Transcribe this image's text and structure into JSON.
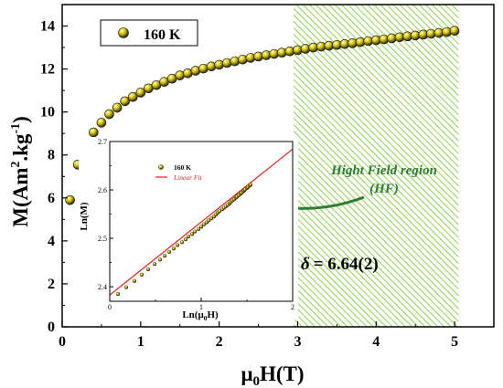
{
  "chart_data": [
    {
      "type": "scatter",
      "role": "main",
      "xlabel": "μ0H(T)",
      "xlabel_main": "μ",
      "xlabel_sub": "0",
      "xlabel_rest": "H(T)",
      "ylabel": "M(Am².kg⁻¹)",
      "ylabel_pre": "M(Am",
      "ylabel_sup1": "2",
      "ylabel_mid": ".kg",
      "ylabel_sup2": "-1",
      "ylabel_post": ")",
      "xlim": [
        0,
        5.5
      ],
      "ylim": [
        0,
        15
      ],
      "xticks": [
        "0",
        "1",
        "2",
        "3",
        "4",
        "5"
      ],
      "yticks": [
        "0",
        "2",
        "4",
        "6",
        "8",
        "10",
        "12",
        "14"
      ],
      "legend": {
        "placement": "top-left",
        "entries": [
          "160 K"
        ]
      },
      "grid": false,
      "marker_color": "#d4c400",
      "shaded_region": {
        "x_range": [
          2.95,
          5.05
        ],
        "color": "#8fd14f",
        "pattern": "diagonal-hatch"
      },
      "annotations": {
        "region_line1": "Hight Field region",
        "region_line2": "(HF)",
        "delta_symbol": "δ",
        "delta_value": "= 6.64(2)",
        "annotation_color": "#2e7d32"
      },
      "series": [
        {
          "name": "160 K",
          "x": [
            0.1,
            0.2,
            0.3,
            0.4,
            0.5,
            0.6,
            0.7,
            0.8,
            0.9,
            1.0,
            1.1,
            1.2,
            1.3,
            1.4,
            1.5,
            1.6,
            1.7,
            1.8,
            1.9,
            2.0,
            2.1,
            2.2,
            2.3,
            2.4,
            2.5,
            2.6,
            2.7,
            2.8,
            2.9,
            3.0,
            3.1,
            3.2,
            3.3,
            3.4,
            3.5,
            3.6,
            3.7,
            3.8,
            3.9,
            4.0,
            4.1,
            4.2,
            4.3,
            4.4,
            4.5,
            4.6,
            4.7,
            4.8,
            4.9,
            5.0
          ],
          "y": [
            5.9,
            7.55,
            8.45,
            9.05,
            9.5,
            9.9,
            10.2,
            10.5,
            10.7,
            10.9,
            11.1,
            11.25,
            11.4,
            11.55,
            11.7,
            11.8,
            11.92,
            12.02,
            12.12,
            12.2,
            12.28,
            12.36,
            12.44,
            12.52,
            12.58,
            12.64,
            12.7,
            12.76,
            12.82,
            12.88,
            12.94,
            13.0,
            13.04,
            13.08,
            13.12,
            13.16,
            13.2,
            13.25,
            13.3,
            13.34,
            13.38,
            13.43,
            13.48,
            13.52,
            13.56,
            13.6,
            13.64,
            13.68,
            13.72,
            13.78
          ]
        }
      ]
    },
    {
      "type": "scatter",
      "role": "inset",
      "xlabel": "Ln(μ0H)",
      "xlabel_pre": "Ln(μ",
      "xlabel_sub": "0",
      "xlabel_post": "H)",
      "ylabel": "Ln(M)",
      "xlim": [
        0,
        2
      ],
      "ylim": [
        2.37,
        2.7
      ],
      "xticks": [
        "0",
        "1",
        "2"
      ],
      "yticks": [
        "2.4",
        "2.5",
        "2.6",
        "2.7"
      ],
      "legend": {
        "placement": "top-left",
        "entries": [
          "160 K",
          "Linear Fit"
        ]
      },
      "grid": false,
      "marker_color": "#d4c400",
      "fit_color": "#e02020",
      "fit_line": {
        "slope": 0.1507,
        "intercept": 2.3829
      },
      "series": [
        {
          "name": "160 K",
          "x": [
            0.09,
            0.18,
            0.27,
            0.35,
            0.42,
            0.49,
            0.55,
            0.6,
            0.65,
            0.7,
            0.74,
            0.79,
            0.83,
            0.86,
            0.9,
            0.93,
            0.97,
            1.0,
            1.03,
            1.06,
            1.08,
            1.11,
            1.14,
            1.16,
            1.18,
            1.2,
            1.23,
            1.25,
            1.27,
            1.29,
            1.31,
            1.32,
            1.34,
            1.36,
            1.38,
            1.39,
            1.41,
            1.43,
            1.44,
            1.46,
            1.47,
            1.48,
            1.5,
            1.51,
            1.53,
            1.54
          ],
          "y": [
            2.385,
            2.399,
            2.412,
            2.425,
            2.436,
            2.447,
            2.456,
            2.464,
            2.472,
            2.479,
            2.486,
            2.492,
            2.498,
            2.504,
            2.509,
            2.514,
            2.519,
            2.524,
            2.529,
            2.533,
            2.537,
            2.541,
            2.545,
            2.549,
            2.553,
            2.556,
            2.56,
            2.563,
            2.566,
            2.569,
            2.572,
            2.575,
            2.578,
            2.581,
            2.584,
            2.586,
            2.589,
            2.592,
            2.594,
            2.597,
            2.599,
            2.601,
            2.604,
            2.606,
            2.609,
            2.611
          ]
        }
      ]
    }
  ]
}
